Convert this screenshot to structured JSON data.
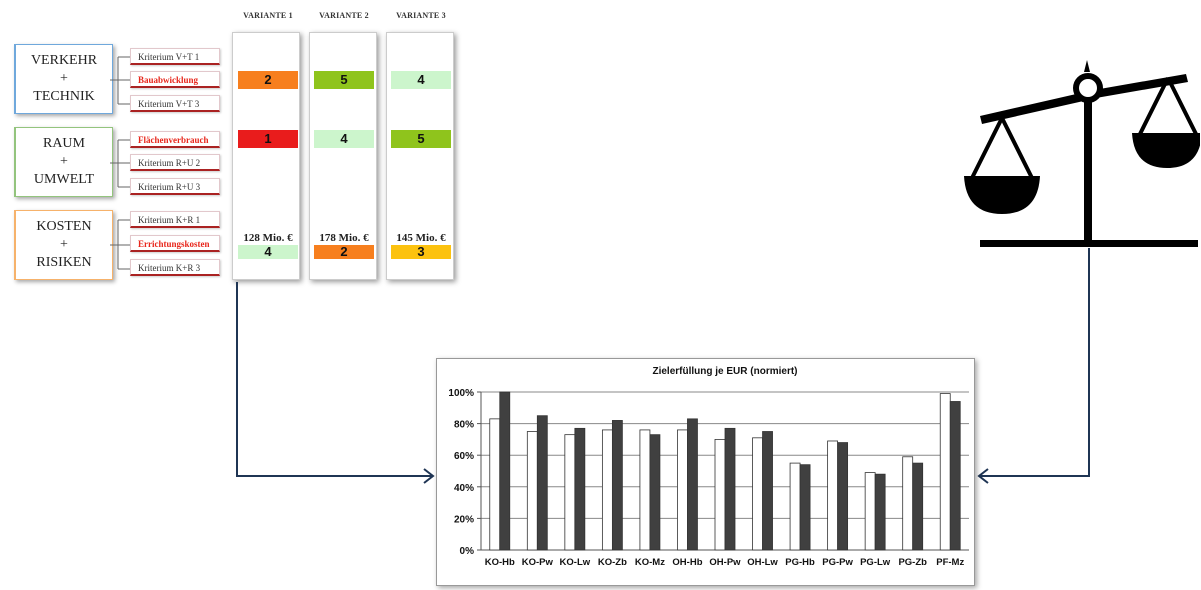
{
  "categories": [
    {
      "lines": [
        "VERKEHR",
        "+",
        "TECHNIK"
      ],
      "color": "#6fa8dc"
    },
    {
      "lines": [
        "RAUM",
        "+",
        "UMWELT"
      ],
      "color": "#93c47d"
    },
    {
      "lines": [
        "KOSTEN",
        "+",
        "RISIKEN"
      ],
      "color": "#f6b26b"
    }
  ],
  "criteria": [
    {
      "label": "Kriterium V+T 1",
      "highlight": false
    },
    {
      "label": "Bauabwicklung",
      "highlight": true
    },
    {
      "label": "Kriterium V+T 3",
      "highlight": false
    },
    {
      "label": "Flächenverbrauch",
      "highlight": true
    },
    {
      "label": "Kriterium R+U 2",
      "highlight": false
    },
    {
      "label": "Kriterium R+U 3",
      "highlight": false
    },
    {
      "label": "Kriterium K+R 1",
      "highlight": false
    },
    {
      "label": "Errichtungskosten",
      "highlight": true
    },
    {
      "label": "Kriterium K+R 3",
      "highlight": false
    }
  ],
  "variants": [
    {
      "name": "VARIANTE 1",
      "ratings": [
        {
          "value": "2",
          "color": "#f77f1e"
        },
        {
          "value": "1",
          "color": "#e91c1c"
        },
        {
          "value": "4",
          "color": "#ccf5cc"
        }
      ],
      "cost": "128 Mio. €"
    },
    {
      "name": "VARIANTE 2",
      "ratings": [
        {
          "value": "5",
          "color": "#8fc41c"
        },
        {
          "value": "4",
          "color": "#ccf5cc"
        },
        {
          "value": "2",
          "color": "#f77f1e"
        }
      ],
      "cost": "178 Mio. €"
    },
    {
      "name": "VARIANTE 3",
      "ratings": [
        {
          "value": "4",
          "color": "#ccf5cc"
        },
        {
          "value": "5",
          "color": "#8fc41c"
        },
        {
          "value": "3",
          "color": "#fcc20f"
        }
      ],
      "cost": "145 Mio. €"
    }
  ],
  "icons": {
    "scale": "balance-scale-icon"
  },
  "chart_data": {
    "type": "bar",
    "title": "Zielerfüllung je EUR (normiert)",
    "categories": [
      "KO-Hb",
      "KO-Pw",
      "KO-Lw",
      "KO-Zb",
      "KO-Mz",
      "OH-Hb",
      "OH-Pw",
      "OH-Lw",
      "PG-Hb",
      "PG-Pw",
      "PG-Lw",
      "PG-Zb",
      "PF-Mz"
    ],
    "series": [
      {
        "values": [
          83,
          75,
          73,
          76,
          76,
          76,
          70,
          71,
          55,
          69,
          49,
          59,
          99
        ],
        "color": "#ffffff"
      },
      {
        "values": [
          100,
          85,
          77,
          82,
          73,
          83,
          77,
          75,
          54,
          68,
          48,
          55,
          94
        ],
        "color": "#404040"
      }
    ],
    "yticks": [
      "0%",
      "20%",
      "40%",
      "60%",
      "80%",
      "100%"
    ],
    "ylim": [
      0,
      100
    ],
    "grid": true,
    "xlabel": "",
    "ylabel": ""
  }
}
